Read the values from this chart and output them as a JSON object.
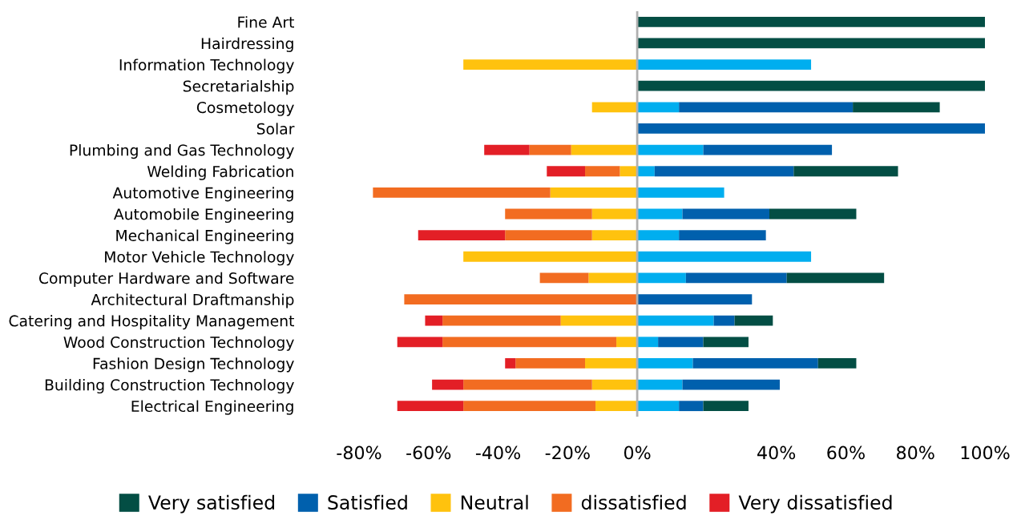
{
  "chart_data": {
    "type": "bar",
    "orientation": "horizontal",
    "stacked": true,
    "categories": [
      "Fine Art",
      "Hairdressing",
      "Information Technology",
      "Secretarialship",
      "Cosmetology",
      "Solar",
      "Plumbing and Gas Technology",
      "Welding Fabrication",
      "Automotive Engineering",
      "Automobile Engineering",
      "Mechanical Engineering",
      "Motor Vehicle Technology",
      "Computer Hardware and Software",
      "Architectural Draftmanship",
      "Catering and Hospitality Management",
      "Wood Construction Technology",
      "Fashion Design Technology",
      "Building Construction Technology",
      "Electrical Engineering"
    ],
    "series": [
      {
        "name": "Neutral",
        "color": "#ffc20e",
        "values": [
          null,
          null,
          -50,
          null,
          -13,
          null,
          -19,
          -5,
          -25,
          -13,
          -13,
          -50,
          -14,
          null,
          -22,
          -6,
          -15,
          -13,
          -12
        ]
      },
      {
        "name": "dissatisfied",
        "color": "#f26c21",
        "values": [
          null,
          null,
          null,
          null,
          null,
          null,
          -12,
          -10,
          -51,
          -25,
          -25,
          null,
          -14,
          -67,
          -34,
          -50,
          -20,
          -37,
          -38
        ]
      },
      {
        "name": "Very dissatisfied",
        "color": "#e31f26",
        "values": [
          null,
          null,
          null,
          null,
          null,
          null,
          -13,
          -11,
          null,
          null,
          -25,
          null,
          null,
          null,
          -5,
          -13,
          -3,
          -9,
          -19
        ]
      },
      {
        "color": "#00aeef",
        "values": [
          null,
          null,
          50,
          null,
          12,
          null,
          19,
          5,
          25,
          13,
          12,
          50,
          14,
          null,
          22,
          6,
          16,
          13,
          12
        ]
      },
      {
        "name": "Satisfied",
        "color": "#0060ad",
        "values": [
          null,
          null,
          null,
          null,
          50,
          100,
          37,
          40,
          null,
          25,
          25,
          null,
          29,
          33,
          6,
          13,
          36,
          28,
          7
        ]
      },
      {
        "name": "Very satisfied",
        "color": "#034e44",
        "values": [
          100,
          100,
          null,
          100,
          25,
          null,
          null,
          30,
          null,
          25,
          null,
          null,
          28,
          null,
          11,
          13,
          11,
          null,
          13
        ]
      }
    ],
    "xlim": [
      -80,
      100
    ],
    "xticks": [
      {
        "value": -80,
        "label": "-80%"
      },
      {
        "value": -60,
        "label": "-60%"
      },
      {
        "value": -40,
        "label": "-40%"
      },
      {
        "value": -20,
        "label": "-20%"
      },
      {
        "value": 0,
        "label": "0%"
      },
      {
        "value": 40,
        "label": "40%"
      },
      {
        "value": 60,
        "label": "60%"
      },
      {
        "value": 80,
        "label": "80%"
      },
      {
        "value": 100,
        "label": "100%"
      }
    ],
    "ref_lines": [
      {
        "axis": "x",
        "value": 0,
        "color": "#b0b0b0"
      }
    ],
    "grid": false,
    "legend": "bottom"
  }
}
